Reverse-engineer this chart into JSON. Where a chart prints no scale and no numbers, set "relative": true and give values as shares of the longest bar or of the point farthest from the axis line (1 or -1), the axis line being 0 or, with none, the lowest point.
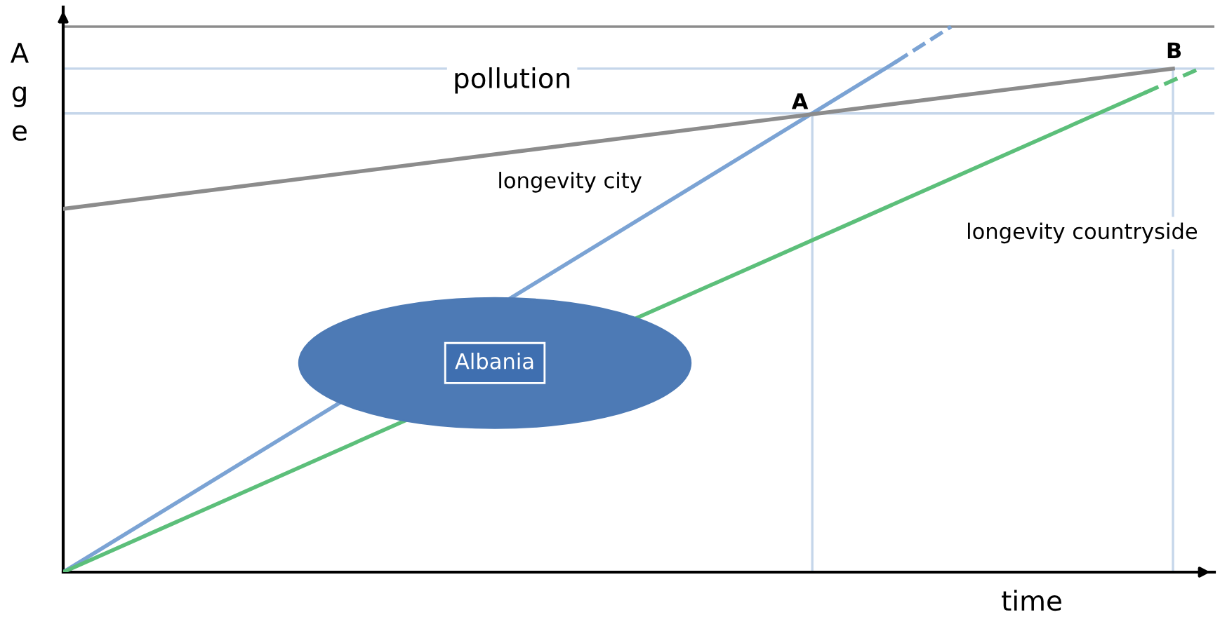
{
  "chart_data": {
    "type": "line",
    "relative": true,
    "xlabel": "time",
    "ylabel": "Age",
    "categories": [
      null,
      null,
      null,
      null,
      null,
      null,
      null,
      null,
      null,
      null,
      null,
      null,
      null,
      null,
      null,
      null,
      null,
      null,
      null,
      null,
      null,
      null,
      null,
      null,
      null,
      null,
      null,
      null,
      null,
      null,
      null,
      null,
      null,
      null,
      null,
      null,
      null,
      null,
      null,
      null,
      null,
      null
    ],
    "series": [
      {
        "color": "#7ba3d4",
        "values": [
          0,
          null,
          null,
          null,
          null,
          null,
          null,
          null,
          null,
          null,
          null,
          null,
          null,
          null,
          null,
          null,
          null,
          null,
          null,
          null,
          null,
          null,
          null,
          null,
          null,
          null,
          null,
          0.841,
          null,
          null,
          0.935,
          null,
          null,
          null,
          null,
          null,
          null,
          null,
          null,
          null,
          null,
          null
        ]
      },
      {
        "color": "#7ba3d4",
        "line_style": "dashed",
        "values": [
          null,
          null,
          null,
          null,
          null,
          null,
          null,
          null,
          null,
          null,
          null,
          null,
          null,
          null,
          null,
          null,
          null,
          null,
          null,
          null,
          null,
          null,
          null,
          null,
          null,
          null,
          null,
          null,
          null,
          null,
          0.935,
          null,
          1.0,
          null,
          null,
          null,
          null,
          null,
          null,
          null,
          null,
          null
        ]
      },
      {
        "color": "#8c8c8c",
        "values": [
          0.666,
          null,
          null,
          null,
          null,
          null,
          null,
          null,
          null,
          null,
          null,
          null,
          null,
          null,
          null,
          null,
          null,
          null,
          null,
          null,
          null,
          null,
          null,
          null,
          null,
          null,
          null,
          null,
          null,
          null,
          null,
          null,
          null,
          null,
          null,
          null,
          null,
          null,
          null,
          null,
          0.923,
          null
        ]
      },
      {
        "color": "#5cbf7a",
        "values": [
          0,
          null,
          null,
          null,
          null,
          null,
          null,
          null,
          null,
          null,
          null,
          null,
          null,
          null,
          null,
          null,
          null,
          null,
          null,
          null,
          null,
          null,
          null,
          null,
          null,
          null,
          null,
          null,
          null,
          null,
          null,
          null,
          null,
          null,
          null,
          null,
          null,
          null,
          null,
          0.879,
          null,
          null
        ]
      },
      {
        "color": "#5cbf7a",
        "line_style": "dashed",
        "values": [
          null,
          null,
          null,
          null,
          null,
          null,
          null,
          null,
          null,
          null,
          null,
          null,
          null,
          null,
          null,
          null,
          null,
          null,
          null,
          null,
          null,
          null,
          null,
          null,
          null,
          null,
          null,
          null,
          null,
          null,
          null,
          null,
          null,
          null,
          null,
          null,
          null,
          null,
          null,
          0.879,
          null,
          0.924
        ]
      }
    ],
    "ref_lines": [
      {
        "axis": "y",
        "value": 0.841,
        "label": null,
        "color": "#c5d6ea"
      },
      {
        "axis": "y",
        "value": 0.923,
        "label": null,
        "color": "#c5d6ea"
      },
      {
        "axis": "y",
        "value": 1.0,
        "label": null,
        "color": "#8c8c8c"
      }
    ],
    "annotations": [
      "pollution",
      "A",
      "B",
      "longevity city",
      "longevity countryside",
      "Albania"
    ]
  }
}
